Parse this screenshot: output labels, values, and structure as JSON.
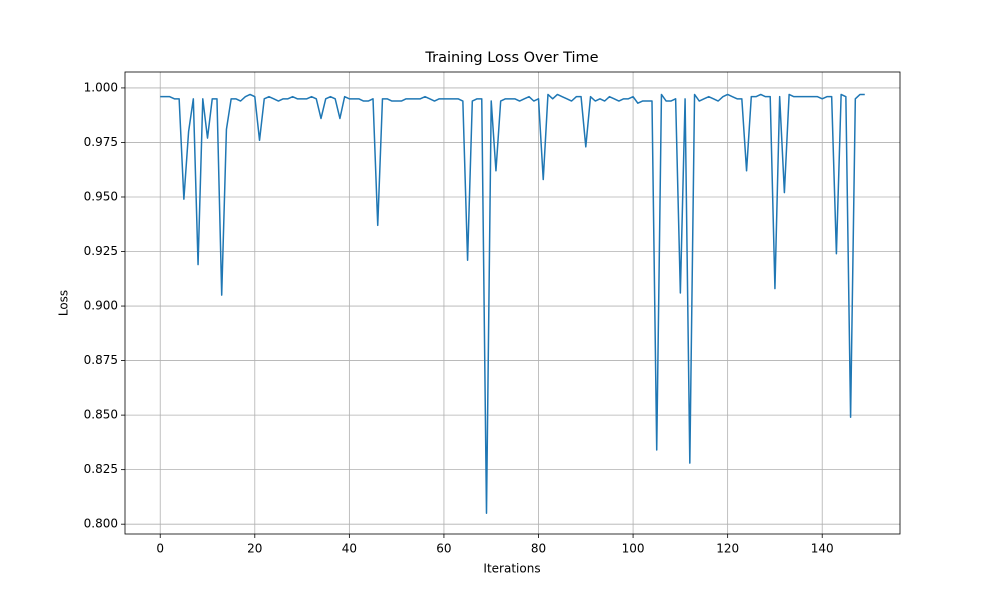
{
  "chart_data": {
    "type": "line",
    "title": "Training Loss Over Time",
    "x_label": "Iterations",
    "y_label": "Loss",
    "x": [
      0,
      1,
      2,
      3,
      4,
      5,
      6,
      7,
      8,
      9,
      10,
      11,
      12,
      13,
      14,
      15,
      16,
      17,
      18,
      19,
      20,
      21,
      22,
      23,
      24,
      25,
      26,
      27,
      28,
      29,
      30,
      31,
      32,
      33,
      34,
      35,
      36,
      37,
      38,
      39,
      40,
      41,
      42,
      43,
      44,
      45,
      46,
      47,
      48,
      49,
      50,
      51,
      52,
      53,
      54,
      55,
      56,
      57,
      58,
      59,
      60,
      61,
      62,
      63,
      64,
      65,
      66,
      67,
      68,
      69,
      70,
      71,
      72,
      73,
      74,
      75,
      76,
      77,
      78,
      79,
      80,
      81,
      82,
      83,
      84,
      85,
      86,
      87,
      88,
      89,
      90,
      91,
      92,
      93,
      94,
      95,
      96,
      97,
      98,
      99,
      100,
      101,
      102,
      103,
      104,
      105,
      106,
      107,
      108,
      109,
      110,
      111,
      112,
      113,
      114,
      115,
      116,
      117,
      118,
      119,
      120,
      121,
      122,
      123,
      124,
      125,
      126,
      127,
      128,
      129,
      130,
      131,
      132,
      133,
      134,
      135,
      136,
      137,
      138,
      139,
      140,
      141,
      142,
      143,
      144,
      145,
      146,
      147,
      148,
      149
    ],
    "series": [
      {
        "name": "Loss",
        "color": "#1f77b4",
        "values": [
          0.996,
          0.996,
          0.996,
          0.995,
          0.995,
          0.949,
          0.98,
          0.995,
          0.919,
          0.995,
          0.977,
          0.995,
          0.995,
          0.905,
          0.981,
          0.995,
          0.995,
          0.994,
          0.996,
          0.997,
          0.996,
          0.976,
          0.995,
          0.996,
          0.995,
          0.994,
          0.995,
          0.995,
          0.996,
          0.995,
          0.995,
          0.995,
          0.996,
          0.995,
          0.986,
          0.995,
          0.996,
          0.995,
          0.986,
          0.996,
          0.995,
          0.995,
          0.995,
          0.994,
          0.994,
          0.995,
          0.937,
          0.995,
          0.995,
          0.994,
          0.994,
          0.994,
          0.995,
          0.995,
          0.995,
          0.995,
          0.996,
          0.995,
          0.994,
          0.995,
          0.995,
          0.995,
          0.995,
          0.995,
          0.994,
          0.921,
          0.994,
          0.995,
          0.995,
          0.805,
          0.994,
          0.962,
          0.994,
          0.995,
          0.995,
          0.995,
          0.994,
          0.995,
          0.996,
          0.994,
          0.995,
          0.958,
          0.997,
          0.995,
          0.997,
          0.996,
          0.995,
          0.994,
          0.996,
          0.996,
          0.973,
          0.996,
          0.994,
          0.995,
          0.994,
          0.996,
          0.995,
          0.994,
          0.995,
          0.995,
          0.996,
          0.993,
          0.994,
          0.994,
          0.994,
          0.834,
          0.997,
          0.994,
          0.994,
          0.995,
          0.906,
          0.995,
          0.828,
          0.997,
          0.994,
          0.995,
          0.996,
          0.995,
          0.994,
          0.996,
          0.997,
          0.996,
          0.995,
          0.995,
          0.962,
          0.996,
          0.996,
          0.997,
          0.996,
          0.996,
          0.908,
          0.996,
          0.952,
          0.997,
          0.996,
          0.996,
          0.996,
          0.996,
          0.996,
          0.996,
          0.995,
          0.996,
          0.996,
          0.924,
          0.997,
          0.996,
          0.849,
          0.995,
          0.997,
          0.997
        ]
      }
    ],
    "xlim": [
      -7.45,
      156.45
    ],
    "ylim": [
      0.7955,
      1.0073
    ],
    "xticks": [
      0,
      20,
      40,
      60,
      80,
      100,
      120,
      140
    ],
    "yticks": [
      {
        "value": 0.8,
        "label": "0.800"
      },
      0.825,
      {
        "value": 0.85,
        "label": "0.850"
      },
      0.875,
      {
        "value": 0.9,
        "label": "0.900"
      },
      0.925,
      {
        "value": 0.95,
        "label": "0.950"
      },
      0.975,
      {
        "value": 1.0,
        "label": "1.000"
      }
    ],
    "grid": true
  }
}
